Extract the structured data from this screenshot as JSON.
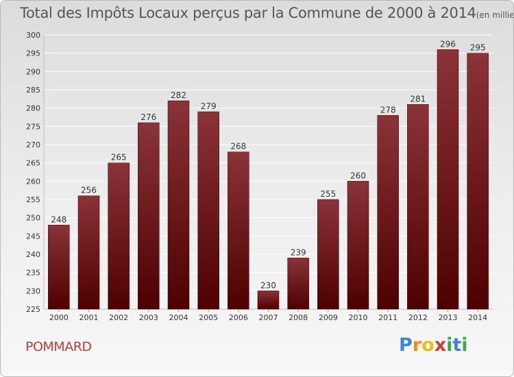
{
  "title": "Total des Impôts Locaux perçus par la Commune de 2000 à 2014",
  "unit": "(en milliers d'€)",
  "commune": "POMMARD",
  "logo": {
    "letters": [
      "P",
      "r",
      "o",
      "x",
      "i",
      "t",
      "i"
    ],
    "colors": [
      "#3a86d6",
      "#f08a1c",
      "#e3c416",
      "#d23a3a",
      "#3aa84a",
      "#3a86d6",
      "#3aa84a"
    ]
  },
  "colors": {
    "bar_top": "#8a3338",
    "bar_bottom": "#4e0000",
    "grid": "#ffffff",
    "text": "#333333"
  },
  "chart_data": {
    "type": "bar",
    "categories": [
      "2000",
      "2001",
      "2002",
      "2003",
      "2004",
      "2005",
      "2006",
      "2007",
      "2008",
      "2009",
      "2010",
      "2011",
      "2012",
      "2013",
      "2014"
    ],
    "values": [
      248,
      256,
      265,
      276,
      282,
      279,
      268,
      230,
      239,
      255,
      260,
      278,
      281,
      296,
      295
    ],
    "ylim": [
      225,
      300
    ],
    "yticks": [
      225,
      230,
      235,
      240,
      245,
      250,
      255,
      260,
      265,
      270,
      275,
      280,
      285,
      290,
      295,
      300
    ],
    "grid": true,
    "data_labels": true
  }
}
